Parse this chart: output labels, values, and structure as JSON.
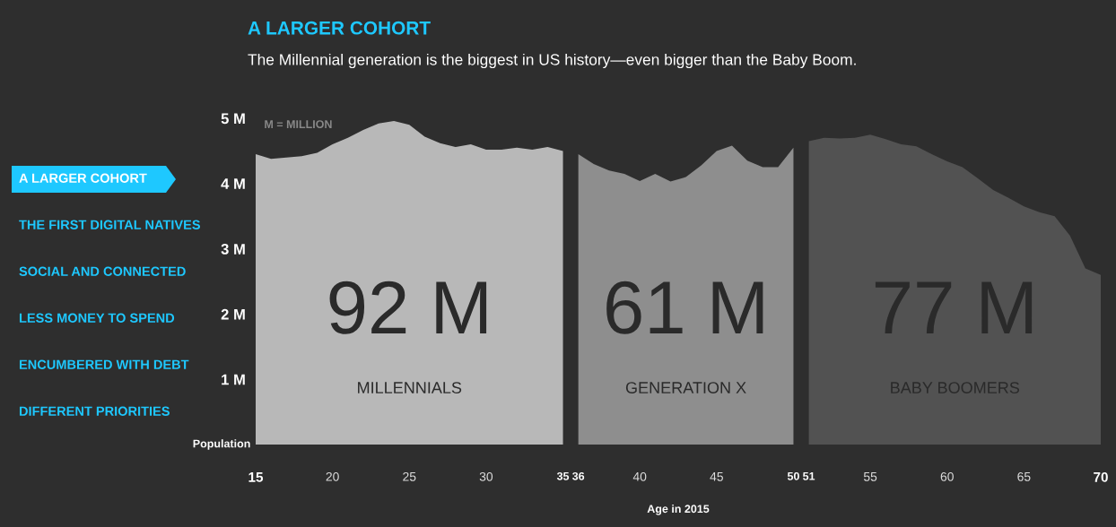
{
  "chart_data": {
    "type": "area",
    "title": "A LARGER COHORT",
    "subtitle": "The Millennial generation is the biggest in US history—even bigger than the Baby Boom.",
    "xlabel": "Age in 2015",
    "ylabel": "Population",
    "xlim": [
      15,
      70
    ],
    "xticks": [
      15,
      20,
      25,
      30,
      35,
      36,
      40,
      45,
      50,
      51,
      55,
      60,
      65,
      70
    ],
    "ylim": [
      0,
      5
    ],
    "yticks": [
      {
        "value": 1,
        "label": "1 M"
      },
      {
        "value": 2,
        "label": "2 M"
      },
      {
        "value": 3,
        "label": "3 M"
      },
      {
        "value": 4,
        "label": "4 M"
      },
      {
        "value": 5,
        "label": "5 M"
      }
    ],
    "grid": false,
    "legend": false,
    "series": [
      {
        "name": "MILLENNIALS",
        "color": "#b8b8b8",
        "x": [
          15,
          16,
          17,
          18,
          19,
          20,
          21,
          22,
          23,
          24,
          25,
          26,
          27,
          28,
          29,
          30,
          31,
          32,
          33,
          34,
          35
        ],
        "values": [
          4.45,
          4.38,
          4.4,
          4.42,
          4.47,
          4.6,
          4.7,
          4.82,
          4.92,
          4.96,
          4.9,
          4.72,
          4.62,
          4.56,
          4.6,
          4.52,
          4.52,
          4.55,
          4.52,
          4.56,
          4.5
        ]
      },
      {
        "name": "GENERATION X",
        "color": "#8e8e8e",
        "x": [
          36,
          37,
          38,
          39,
          40,
          41,
          42,
          43,
          44,
          45,
          46,
          47,
          48,
          49,
          50
        ],
        "values": [
          4.45,
          4.3,
          4.2,
          4.15,
          4.04,
          4.15,
          4.03,
          4.1,
          4.28,
          4.5,
          4.58,
          4.35,
          4.25,
          4.25,
          4.55
        ]
      },
      {
        "name": "BABY BOOMERS",
        "color": "#525252",
        "x": [
          51,
          52,
          53,
          54,
          55,
          56,
          57,
          58,
          59,
          60,
          61,
          62,
          63,
          64,
          65,
          66,
          67,
          68,
          69,
          70
        ],
        "values": [
          4.65,
          4.7,
          4.69,
          4.7,
          4.75,
          4.68,
          4.6,
          4.57,
          4.45,
          4.34,
          4.25,
          4.08,
          3.9,
          3.78,
          3.65,
          3.56,
          3.5,
          3.2,
          2.7,
          2.6
        ]
      }
    ],
    "annotations": [
      "92 M",
      "61 M",
      "77 M",
      "M = MILLION",
      "A LARGER COHORT",
      "THE FIRST DIGITAL NATIVES",
      "SOCIAL AND CONNECTED",
      "LESS MONEY TO SPEND",
      "ENCUMBERED WITH DEBT",
      "DIFFERENT PRIORITIES"
    ]
  }
}
